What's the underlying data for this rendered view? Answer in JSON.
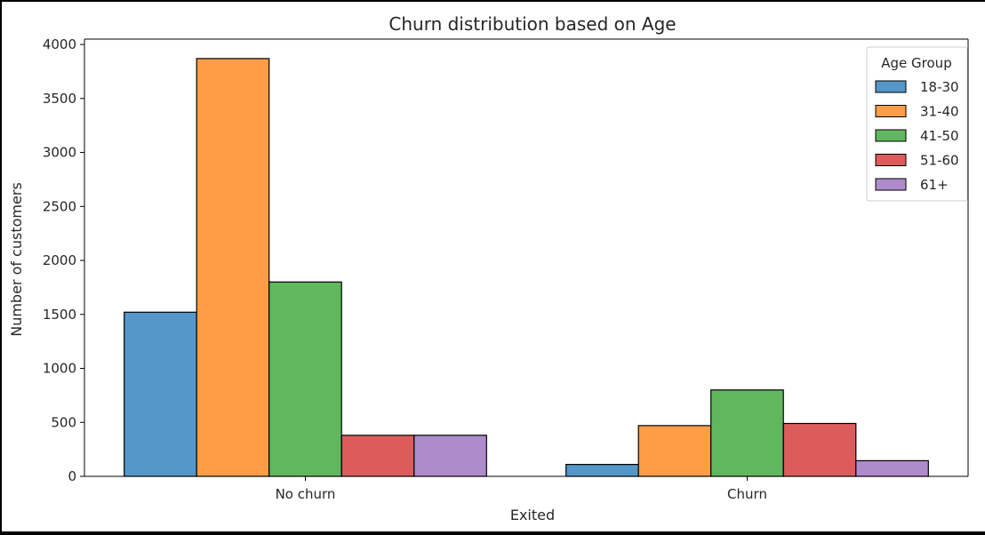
{
  "chart_data": {
    "type": "bar",
    "title": "Churn distribution based on Age",
    "xlabel": "Exited",
    "ylabel": "Number of customers",
    "categories": [
      "No churn",
      "Churn"
    ],
    "ylim": [
      0,
      4050
    ],
    "yticks": [
      0,
      500,
      1000,
      1500,
      2000,
      2500,
      3000,
      3500,
      4000
    ],
    "grid": false,
    "legend": {
      "title": "Age Group",
      "placement": "top-right"
    },
    "series": [
      {
        "name": "18-30",
        "values": [
          1520,
          110
        ],
        "color": "#5497c8"
      },
      {
        "name": "31-40",
        "values": [
          3870,
          470
        ],
        "color": "#fd9d45"
      },
      {
        "name": "41-50",
        "values": [
          1800,
          800
        ],
        "color": "#60b75e"
      },
      {
        "name": "51-60",
        "values": [
          380,
          490
        ],
        "color": "#dc5c5c"
      },
      {
        "name": "61+",
        "values": [
          380,
          145
        ],
        "color": "#ae8ccc"
      }
    ]
  }
}
